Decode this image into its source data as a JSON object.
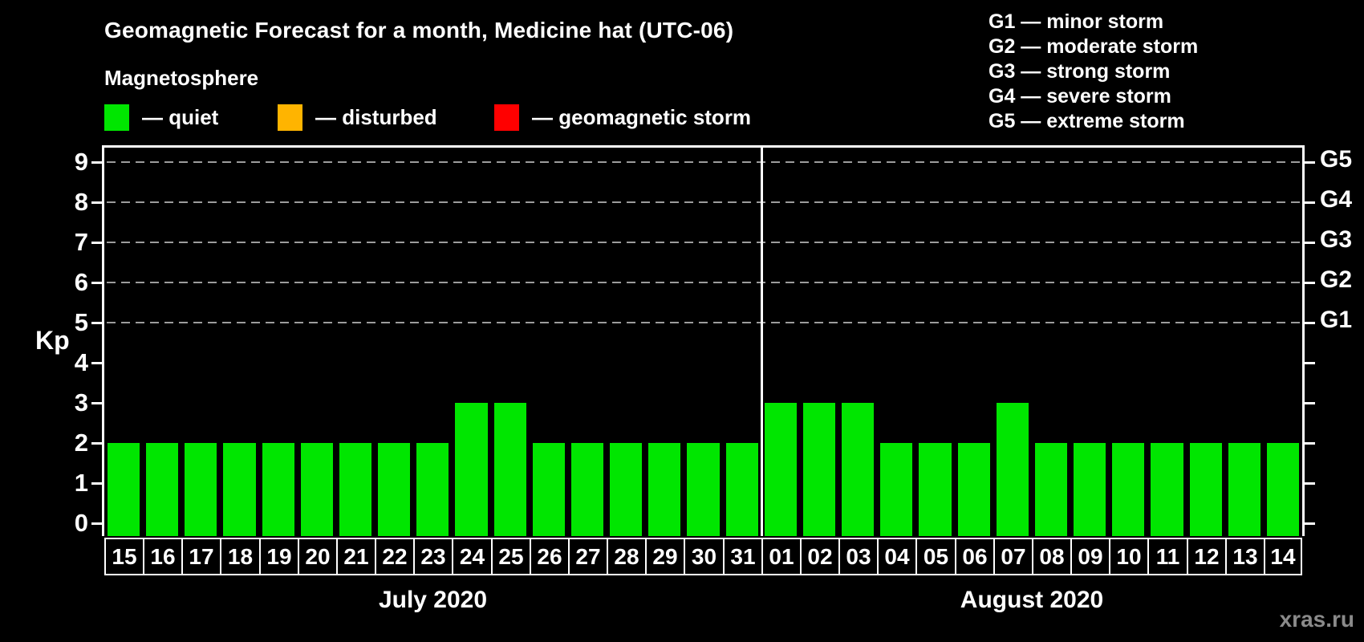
{
  "page": {
    "background": "#000000",
    "watermark": "xras.ru"
  },
  "header": {
    "title": "Geomagnetic Forecast for a month, Medicine hat (UTC-06)",
    "subtitle": "Magnetosphere",
    "legend": [
      {
        "name": "quiet",
        "label": "— quiet",
        "color": "#00e600"
      },
      {
        "name": "disturbed",
        "label": "— disturbed",
        "color": "#ffb400"
      },
      {
        "name": "geomagnetic-storm",
        "label": "— geomagnetic storm",
        "color": "#ff0000"
      }
    ],
    "g_scale_legend": [
      "G1 — minor storm",
      "G2 — moderate storm",
      "G3 — strong storm",
      "G4 — severe storm",
      "G5 — extreme storm"
    ]
  },
  "chart_data": {
    "type": "bar",
    "title": "Geomagnetic Forecast for a month, Medicine hat (UTC-06)",
    "subtitle": "Magnetosphere",
    "ylabel": "Kp",
    "ylim": [
      0,
      9.35
    ],
    "yticks": [
      0,
      1,
      2,
      3,
      4,
      5,
      6,
      7,
      8,
      9
    ],
    "grid": "dashed horizontal lines at Kp 5-9",
    "grid_levels": [
      5,
      6,
      7,
      8,
      9
    ],
    "legend_position": "top-left and top-right",
    "bar_color": "#00e600",
    "bar_status": "quiet",
    "right_axis_labels": [
      {
        "label": "G5",
        "kp": 9
      },
      {
        "label": "G4",
        "kp": 8
      },
      {
        "label": "G3",
        "kp": 7
      },
      {
        "label": "G2",
        "kp": 6
      },
      {
        "label": "G1",
        "kp": 5
      }
    ],
    "months": [
      {
        "label": "July 2020",
        "days": [
          "15",
          "16",
          "17",
          "18",
          "19",
          "20",
          "21",
          "22",
          "23",
          "24",
          "25",
          "26",
          "27",
          "28",
          "29",
          "30",
          "31"
        ],
        "values": [
          2,
          2,
          2,
          2,
          2,
          2,
          2,
          2,
          2,
          3,
          3,
          2,
          2,
          2,
          2,
          2,
          2
        ]
      },
      {
        "label": "August 2020",
        "days": [
          "01",
          "02",
          "03",
          "04",
          "05",
          "06",
          "07",
          "08",
          "09",
          "10",
          "11",
          "12",
          "13",
          "14"
        ],
        "values": [
          3,
          3,
          3,
          2,
          2,
          2,
          3,
          2,
          2,
          2,
          2,
          2,
          2,
          2
        ]
      }
    ]
  }
}
